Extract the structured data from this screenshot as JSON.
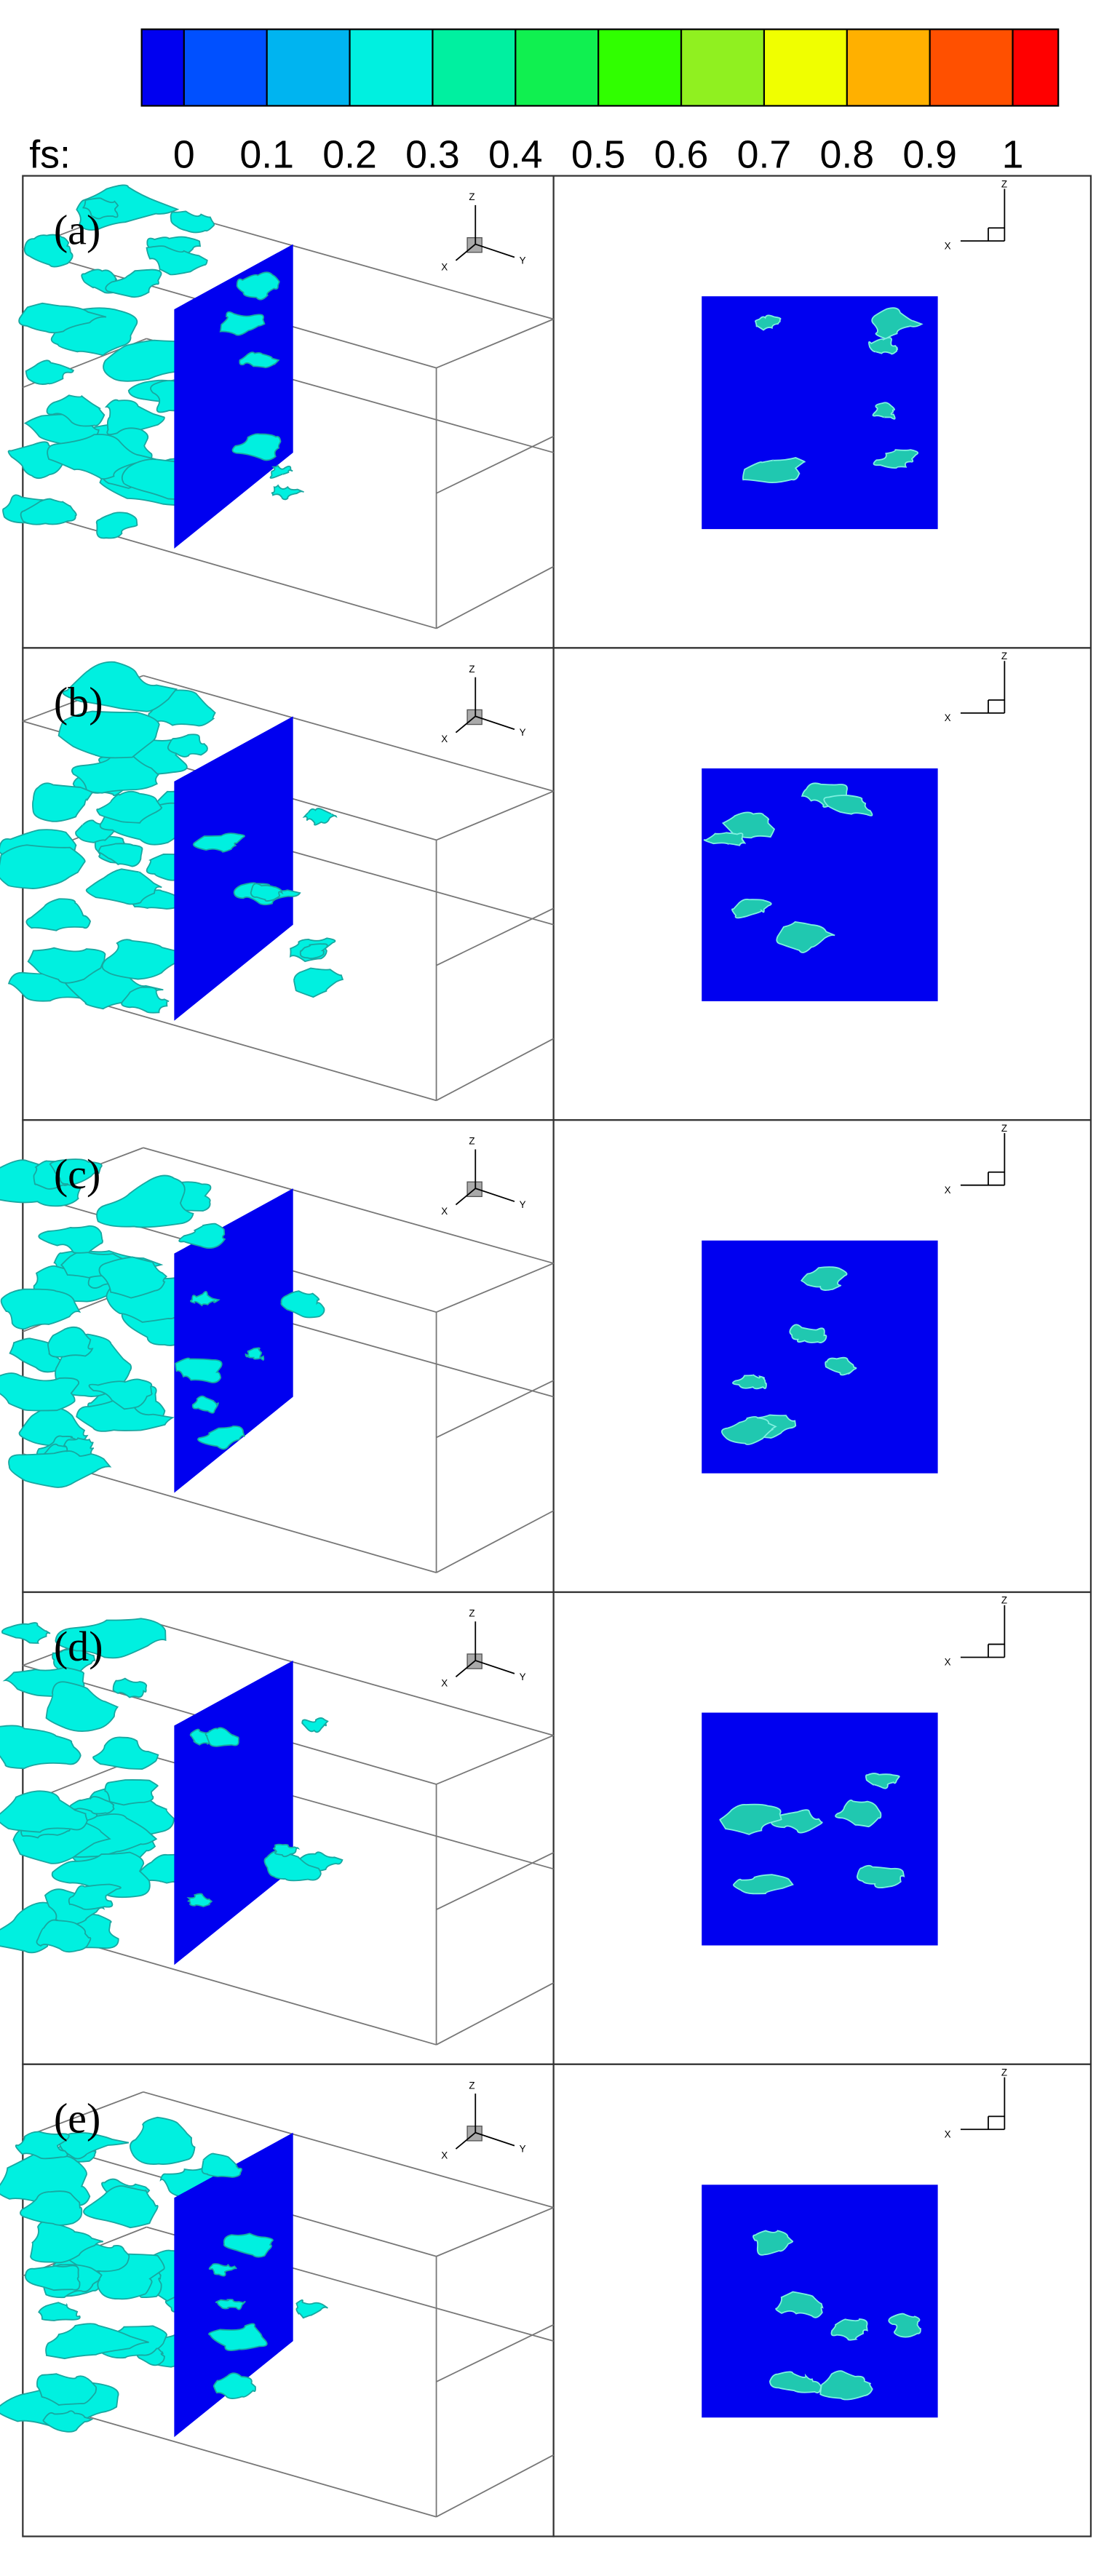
{
  "colorbar": {
    "label": "fs:",
    "ticks": [
      0,
      0.1,
      0.2,
      0.3,
      0.4,
      0.5,
      0.6,
      0.7,
      0.8,
      0.9,
      1
    ],
    "colors": [
      "#0000f0",
      "#0050ff",
      "#00b4f0",
      "#00f0e0",
      "#00f0a0",
      "#10f050",
      "#30ff00",
      "#90f020",
      "#f0ff00",
      "#ffb000",
      "#ff5000",
      "#ff0000"
    ]
  },
  "panels": [
    {
      "label": "(a)"
    },
    {
      "label": "(b)"
    },
    {
      "label": "(c)"
    },
    {
      "label": "(d)"
    },
    {
      "label": "(e)"
    }
  ],
  "triad_3d": {
    "z": "Z",
    "x": "X",
    "y": "Y"
  },
  "triad_2d": {
    "z": "Z",
    "x": "X"
  }
}
